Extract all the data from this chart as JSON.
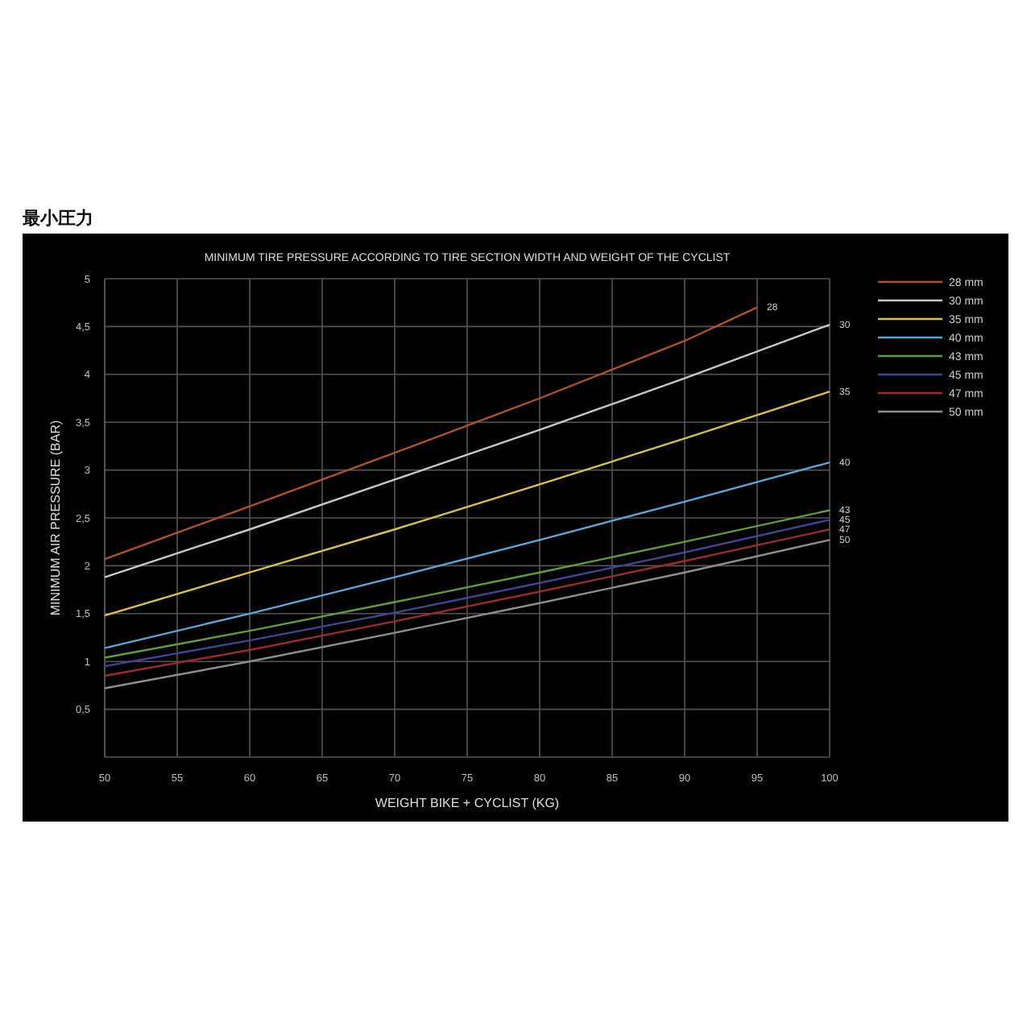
{
  "chart_data": {
    "type": "line",
    "title": "最小圧力",
    "subtitle": "MINIMUM TIRE PRESSURE ACCORDING TO TIRE SECTION WIDTH AND WEIGHT OF THE CYCLIST",
    "xlabel": "WEIGHT BIKE + CYCLIST (KG)",
    "ylabel": "MINIMUM AIR PRESSURE (BAR)",
    "xlim": [
      50,
      100
    ],
    "xticks": [
      50,
      55,
      60,
      65,
      70,
      75,
      80,
      85,
      90,
      95,
      100
    ],
    "ylim": [
      0,
      5
    ],
    "yticks": [
      {
        "value": 0.5,
        "label": "0,5"
      },
      1,
      {
        "value": 1.5,
        "label": "1,5"
      },
      2,
      {
        "value": 2.5,
        "label": "2,5"
      },
      3,
      {
        "value": 3.5,
        "label": "3,5"
      },
      4,
      {
        "value": 4.5,
        "label": "4,5"
      },
      5
    ],
    "grid": true,
    "legend": "right",
    "marker": "none",
    "line_style": "solid",
    "series": [
      {
        "name": "28 mm",
        "color": "#b5502f",
        "x": [
          50,
          60,
          70,
          80,
          90,
          95
        ],
        "values": [
          2.07,
          2.62,
          3.18,
          3.75,
          4.35,
          4.7
        ]
      },
      {
        "name": "30 mm",
        "color": "#c8c8c8",
        "x": [
          50,
          60,
          70,
          80,
          90,
          100
        ],
        "values": [
          1.88,
          2.38,
          2.9,
          3.42,
          3.96,
          4.52
        ]
      },
      {
        "name": "35 mm",
        "color": "#d6c24a",
        "x": [
          50,
          60,
          70,
          80,
          90,
          100
        ],
        "values": [
          1.48,
          1.93,
          2.38,
          2.85,
          3.33,
          3.82
        ]
      },
      {
        "name": "40 mm",
        "color": "#5aa7d8",
        "x": [
          50,
          60,
          70,
          80,
          90,
          100
        ],
        "values": [
          1.14,
          1.5,
          1.88,
          2.27,
          2.67,
          3.08
        ]
      },
      {
        "name": "43 mm",
        "color": "#5f9e3a",
        "x": [
          50,
          60,
          70,
          80,
          90,
          100
        ],
        "values": [
          1.04,
          1.32,
          1.62,
          1.93,
          2.25,
          2.58
        ]
      },
      {
        "name": "45 mm",
        "color": "#3f4596",
        "x": [
          50,
          60,
          70,
          80,
          90,
          100
        ],
        "values": [
          0.95,
          1.22,
          1.51,
          1.82,
          2.14,
          2.48
        ]
      },
      {
        "name": "47 mm",
        "color": "#9a2c2c",
        "x": [
          50,
          60,
          70,
          80,
          90,
          100
        ],
        "values": [
          0.85,
          1.12,
          1.42,
          1.73,
          2.05,
          2.38
        ]
      },
      {
        "name": "50 mm",
        "color": "#8e8e8e",
        "x": [
          50,
          60,
          70,
          80,
          90,
          100
        ],
        "values": [
          0.72,
          1.0,
          1.3,
          1.61,
          1.93,
          2.27
        ]
      }
    ],
    "annotations": [
      "28",
      "30",
      "35",
      "40",
      "43",
      "45",
      "47",
      "50"
    ]
  }
}
